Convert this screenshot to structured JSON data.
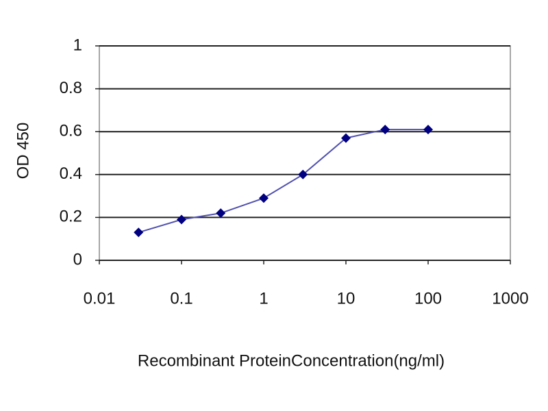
{
  "chart_data": {
    "type": "line",
    "y_label": "OD 450",
    "x_label": "Recombinant ProteinConcentration(ng/ml)",
    "x": [
      0.03,
      0.1,
      0.3,
      1,
      3,
      10,
      30,
      100
    ],
    "values": [
      0.13,
      0.19,
      0.22,
      0.29,
      0.4,
      0.57,
      0.61,
      0.61
    ],
    "color": "#000080",
    "x_log": true,
    "xlim": [
      0.01,
      1000
    ],
    "xticks": [
      0.01,
      0.1,
      1,
      10,
      100,
      1000
    ],
    "ylim": [
      0,
      1
    ],
    "yticks": [
      0,
      0.2,
      0.4,
      0.6,
      0.8,
      1
    ],
    "grid": true
  }
}
